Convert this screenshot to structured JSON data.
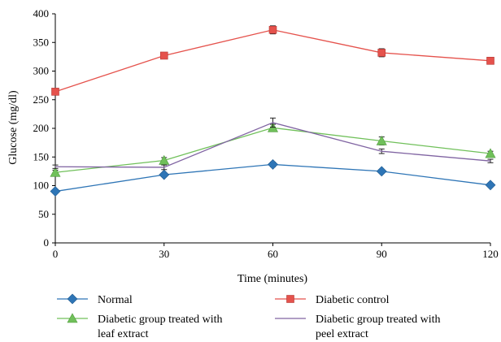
{
  "chart_data": {
    "type": "line",
    "title": "",
    "xlabel": "Time (minutes)",
    "ylabel": "Glucose (mg/dl)",
    "x": [
      0,
      30,
      60,
      90,
      120
    ],
    "xlim": [
      0,
      120
    ],
    "ylim": [
      0,
      400
    ],
    "x_ticks": [
      "0",
      "30",
      "60",
      "90",
      "120"
    ],
    "y_ticks": [
      "0",
      "50",
      "100",
      "150",
      "200",
      "250",
      "300",
      "350",
      "400"
    ],
    "grid": false,
    "legend_position": "bottom",
    "series": [
      {
        "name": "Normal",
        "values": [
          90,
          119,
          137,
          125,
          101
        ],
        "errors": [
          2,
          3,
          4,
          3,
          3
        ],
        "color": "#2e75b6",
        "marker": "diamond"
      },
      {
        "name": "Diabetic control",
        "values": [
          264,
          327,
          372,
          332,
          318
        ],
        "errors": [
          5,
          3,
          7,
          7,
          3
        ],
        "color": "#e5524c",
        "marker": "square"
      },
      {
        "name": "Diabetic group treated with",
        "name_line2": "leaf extract",
        "values": [
          123,
          144,
          201,
          178,
          156
        ],
        "errors": [
          4,
          5,
          6,
          7,
          4
        ],
        "color": "#70c05a",
        "marker": "triangle"
      },
      {
        "name": "Diabetic group treated with",
        "name_line2": "peel extract",
        "values": [
          133,
          132,
          210,
          160,
          143
        ],
        "errors": [
          3,
          4,
          8,
          4,
          3
        ],
        "color": "#8064a2",
        "marker": "none"
      }
    ]
  }
}
